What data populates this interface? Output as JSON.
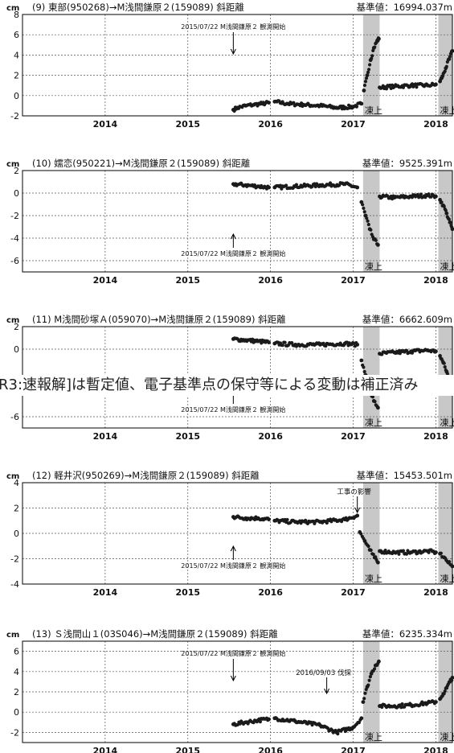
{
  "overlay_note": "R3:速報解]は暫定値、電子基準点の保守等による変動は補正済み",
  "colors": {
    "data": "#1a1a1a",
    "freeze_band": "#c8c8c8",
    "axis": "#000000",
    "grid": "#555555"
  },
  "common": {
    "ylabel": "cm",
    "x_tick_labels": [
      "2014",
      "2015",
      "2016",
      "2017",
      "2018"
    ],
    "freeze_label": "凍上",
    "start_annotation": "2015/07/22 M浅間鎌原２ 観測開始"
  },
  "chart_data": [
    {
      "type": "scatter",
      "title": "(9) 東部(950268)→M浅間鎌原２(159089) 斜距離",
      "reference": "基準値：16994.037m",
      "ylim": [
        -2,
        8
      ],
      "y_ticks": [
        -2,
        0,
        2,
        4,
        6,
        8
      ],
      "grid": true,
      "freeze_periods": [
        [
          2017.12,
          2017.32
        ],
        [
          2018.03,
          2018.2
        ]
      ],
      "annotation_text": "2015/07/22 M浅間鎌原２ 観測開始",
      "annotations": [],
      "series": [
        {
          "segments": [
            {
              "x": [
                2015.55,
                2015.6,
                2015.7,
                2015.8,
                2015.9,
                2015.98
              ],
              "y": [
                -1.4,
                -1.2,
                -1.0,
                -0.9,
                -0.8,
                -0.7
              ]
            },
            {
              "x": [
                2016.05,
                2016.2,
                2016.4,
                2016.6,
                2016.8,
                2017.0,
                2017.1
              ],
              "y": [
                -0.6,
                -0.8,
                -0.9,
                -1.0,
                -1.2,
                -1.1,
                -0.8
              ]
            },
            {
              "x": [
                2017.13,
                2017.17,
                2017.21,
                2017.25,
                2017.29,
                2017.31
              ],
              "y": [
                0.5,
                2.0,
                3.5,
                4.7,
                5.4,
                5.6
              ]
            },
            {
              "x": [
                2017.32,
                2017.5,
                2017.7,
                2017.9,
                2018.0
              ],
              "y": [
                0.8,
                0.9,
                1.0,
                1.0,
                1.1
              ]
            },
            {
              "x": [
                2018.05,
                2018.08,
                2018.12,
                2018.16,
                2018.2
              ],
              "y": [
                1.4,
                1.9,
                2.7,
                3.6,
                4.4
              ]
            }
          ]
        }
      ]
    },
    {
      "type": "scatter",
      "title": "(10) 嬬恋(950221)→M浅間鎌原２(159089) 斜距離",
      "reference": "基準値：9525.391m",
      "ylim": [
        -7,
        2
      ],
      "y_ticks": [
        -6,
        -4,
        -2,
        0,
        2
      ],
      "grid": true,
      "freeze_periods": [
        [
          2017.12,
          2017.32
        ],
        [
          2018.03,
          2018.2
        ]
      ],
      "annotation_text": "2015/07/22 M浅間鎌原２ 観測開始",
      "annotations": [],
      "series": [
        {
          "segments": [
            {
              "x": [
                2015.55,
                2015.7,
                2015.85,
                2015.98
              ],
              "y": [
                0.8,
                0.7,
                0.6,
                0.5
              ]
            },
            {
              "x": [
                2016.05,
                2016.3,
                2016.6,
                2016.9,
                2017.05
              ],
              "y": [
                0.5,
                0.6,
                0.7,
                0.8,
                0.5
              ]
            },
            {
              "x": [
                2017.1,
                2017.15,
                2017.2,
                2017.25,
                2017.3
              ],
              "y": [
                -0.8,
                -2.0,
                -3.2,
                -4.1,
                -4.6
              ]
            },
            {
              "x": [
                2017.32,
                2017.5,
                2017.7,
                2017.9,
                2018.0
              ],
              "y": [
                -0.3,
                -0.4,
                -0.3,
                -0.2,
                -0.3
              ]
            },
            {
              "x": [
                2018.05,
                2018.09,
                2018.13,
                2018.17,
                2018.2
              ],
              "y": [
                -0.6,
                -1.1,
                -1.8,
                -2.6,
                -3.2
              ]
            }
          ]
        }
      ]
    },
    {
      "type": "scatter",
      "title": "(11) M浅間砂塚Ａ(059070)→M浅間鎌原２(159089) 斜距離",
      "reference": "基準値：6662.609m",
      "ylim": [
        -7,
        2
      ],
      "y_ticks": [
        -6,
        0,
        2
      ],
      "grid": true,
      "freeze_periods": [
        [
          2017.12,
          2017.32
        ],
        [
          2018.03,
          2018.2
        ]
      ],
      "annotation_text": "2015/07/22 M浅間鎌原２ 観測開始",
      "annotations": [],
      "series": [
        {
          "segments": [
            {
              "x": [
                2015.55,
                2015.7,
                2015.85,
                2015.98
              ],
              "y": [
                0.9,
                0.8,
                0.7,
                0.6
              ]
            },
            {
              "x": [
                2016.05,
                2016.3,
                2016.6,
                2016.9,
                2017.05
              ],
              "y": [
                0.5,
                0.4,
                0.4,
                0.5,
                0.4
              ]
            },
            {
              "x": [
                2017.1,
                2017.15,
                2017.2,
                2017.25,
                2017.3
              ],
              "y": [
                -1.0,
                -2.3,
                -3.6,
                -4.6,
                -5.2
              ]
            },
            {
              "x": [
                2017.32,
                2017.5,
                2017.7,
                2017.9,
                2018.0
              ],
              "y": [
                -0.4,
                -0.3,
                -0.2,
                -0.1,
                -0.2
              ]
            },
            {
              "x": [
                2018.05,
                2018.09,
                2018.13,
                2018.17,
                2018.2
              ],
              "y": [
                -0.6,
                -1.2,
                -2.0,
                -2.8,
                -3.4
              ]
            }
          ]
        }
      ]
    },
    {
      "type": "scatter",
      "title": "(12) 軽井沢(950269)→M浅間鎌原２(159089) 斜距離",
      "reference": "基準値：15453.501m",
      "ylim": [
        -4,
        4
      ],
      "y_ticks": [
        -4,
        -2,
        0,
        2,
        4
      ],
      "grid": true,
      "freeze_periods": [
        [
          2017.12,
          2017.32
        ],
        [
          2018.03,
          2018.2
        ]
      ],
      "annotation_text": "2015/07/22 M浅間鎌原２ 観測開始",
      "annotations": [
        {
          "text": "工事の影響",
          "x": 2017.05
        }
      ],
      "series": [
        {
          "segments": [
            {
              "x": [
                2015.55,
                2015.7,
                2015.85,
                2015.98
              ],
              "y": [
                1.3,
                1.2,
                1.2,
                1.1
              ]
            },
            {
              "x": [
                2016.05,
                2016.3,
                2016.6,
                2016.9,
                2017.05
              ],
              "y": [
                1.0,
                0.9,
                0.9,
                1.1,
                1.4
              ]
            },
            {
              "x": [
                2017.08,
                2017.14,
                2017.2,
                2017.26,
                2017.3
              ],
              "y": [
                0.1,
                -0.6,
                -1.3,
                -1.9,
                -2.3
              ]
            },
            {
              "x": [
                2017.32,
                2017.5,
                2017.7,
                2017.9,
                2018.0
              ],
              "y": [
                -1.4,
                -1.5,
                -1.5,
                -1.4,
                -1.5
              ]
            },
            {
              "x": [
                2018.05,
                2018.1,
                2018.15,
                2018.2
              ],
              "y": [
                -1.6,
                -1.9,
                -2.3,
                -2.6
              ]
            }
          ]
        }
      ]
    },
    {
      "type": "scatter",
      "title": "(13) Ｓ浅間山１(03S046)→M浅間鎌原２(159089) 斜距離",
      "reference": "基準値：6235.334m",
      "ylim": [
        -3,
        7
      ],
      "y_ticks": [
        -2,
        0,
        2,
        4,
        6
      ],
      "grid": true,
      "freeze_periods": [
        [
          2017.12,
          2017.32
        ],
        [
          2018.03,
          2018.2
        ]
      ],
      "annotation_text": "2015/07/22 M浅間鎌原２ 観測開始",
      "annotations": [
        {
          "text": "2016/09/03 伐採",
          "x": 2016.68
        }
      ],
      "series": [
        {
          "segments": [
            {
              "x": [
                2015.55,
                2015.7,
                2015.85,
                2015.98
              ],
              "y": [
                -1.2,
                -1.0,
                -0.8,
                -0.7
              ]
            },
            {
              "x": [
                2016.05,
                2016.3,
                2016.6,
                2016.8,
                2017.0,
                2017.1
              ],
              "y": [
                -0.6,
                -0.9,
                -1.3,
                -2.0,
                -1.5,
                -0.6
              ]
            },
            {
              "x": [
                2017.12,
                2017.17,
                2017.22,
                2017.27,
                2017.31
              ],
              "y": [
                1.0,
                2.5,
                3.8,
                4.6,
                5.0
              ]
            },
            {
              "x": [
                2017.32,
                2017.5,
                2017.7,
                2017.9,
                2018.0
              ],
              "y": [
                0.6,
                0.6,
                0.7,
                0.9,
                1.0
              ]
            },
            {
              "x": [
                2018.05,
                2018.09,
                2018.13,
                2018.17,
                2018.2
              ],
              "y": [
                1.3,
                1.8,
                2.4,
                3.0,
                3.4
              ]
            }
          ]
        }
      ]
    }
  ]
}
